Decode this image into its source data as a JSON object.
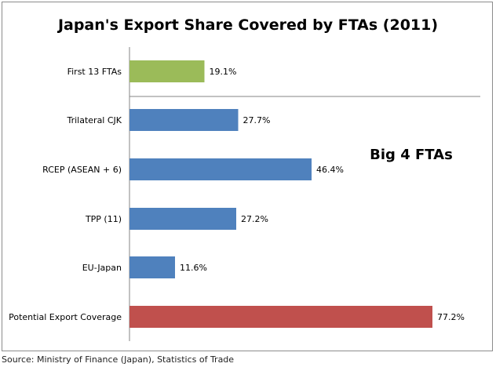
{
  "chart_data": {
    "type": "bar",
    "orientation": "horizontal",
    "title": "Japan's Export Share Covered by FTAs (2011)",
    "categories": [
      "First 13 FTAs",
      "Trilateral CJK",
      "RCEP (ASEAN + 6)",
      "TPP (11)",
      "EU-Japan",
      "Potential Export Coverage"
    ],
    "values": [
      19.1,
      27.7,
      46.4,
      27.2,
      11.6,
      77.2
    ],
    "value_labels": [
      "19.1%",
      "27.7%",
      "46.4%",
      "27.2%",
      "11.6%",
      "77.2%"
    ],
    "bar_colors": [
      "#9bbb59",
      "#4f81bd",
      "#4f81bd",
      "#4f81bd",
      "#4f81bd",
      "#c0504d"
    ],
    "annotation": "Big 4 FTAs",
    "xlim": [
      0,
      100
    ],
    "grid": false,
    "legend": "none"
  },
  "source": "Source: Ministry of Finance (Japan), Statistics of Trade"
}
